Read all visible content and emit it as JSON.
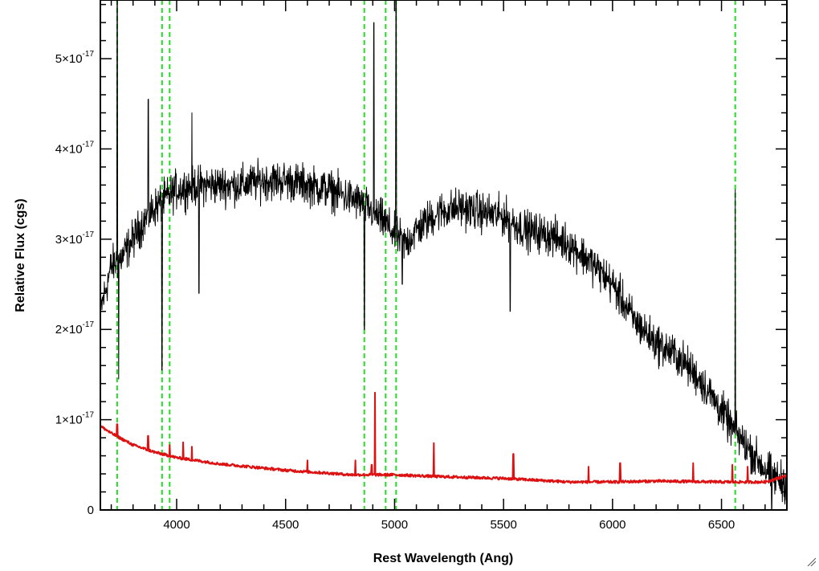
{
  "chart_data": {
    "type": "line",
    "title": "",
    "xlabel": "Rest Wavelength (Ang)",
    "ylabel": "Relative Flux (cgs)",
    "xlim": [
      3650,
      6800
    ],
    "ylim": [
      0,
      5.65e-17
    ],
    "x_ticks": [
      4000,
      4500,
      5000,
      5500,
      6000,
      6500
    ],
    "x_tick_labels": [
      "4000",
      "4500",
      "5000",
      "5500",
      "6000",
      "6500"
    ],
    "y_ticks": [
      0,
      1e-17,
      2e-17,
      3e-17,
      4e-17,
      5e-17
    ],
    "y_tick_labels": [
      {
        "mantissa": "0",
        "exponent": ""
      },
      {
        "mantissa": "1×10",
        "exponent": "-17"
      },
      {
        "mantissa": "2×10",
        "exponent": "-17"
      },
      {
        "mantissa": "3×10",
        "exponent": "-17"
      },
      {
        "mantissa": "4×10",
        "exponent": "-17"
      },
      {
        "mantissa": "5×10",
        "exponent": "-17"
      }
    ],
    "grid": false,
    "legend": "none",
    "series": [
      {
        "color": "#000000",
        "style": "noisy spectrum",
        "x": [
          3650,
          3700,
          3750,
          3800,
          3850,
          3900,
          3950,
          4000,
          4100,
          4200,
          4300,
          4400,
          4500,
          4600,
          4700,
          4800,
          4850,
          4900,
          4950,
          5000,
          5050,
          5100,
          5200,
          5300,
          5400,
          5500,
          5600,
          5700,
          5800,
          5900,
          6000,
          6100,
          6200,
          6300,
          6400,
          6500,
          6550,
          6600,
          6650,
          6700,
          6750,
          6800
        ],
        "values": [
          2.2e-17,
          2.7e-17,
          2.8e-17,
          3e-17,
          3.2e-17,
          3.35e-17,
          3.45e-17,
          3.55e-17,
          3.6e-17,
          3.6e-17,
          3.6e-17,
          3.65e-17,
          3.65e-17,
          3.6e-17,
          3.55e-17,
          3.45e-17,
          3.4e-17,
          3.3e-17,
          3.2e-17,
          3.05e-17,
          2.95e-17,
          3.1e-17,
          3.3e-17,
          3.35e-17,
          3.3e-17,
          3.25e-17,
          3.1e-17,
          3.05e-17,
          2.95e-17,
          2.75e-17,
          2.5e-17,
          2.1e-17,
          1.85e-17,
          1.7e-17,
          1.45e-17,
          1.1e-17,
          9e-18,
          7.5e-18,
          6e-18,
          4.5e-18,
          3.5e-18,
          3e-18
        ],
        "noise": 3.2e-18,
        "peaks": [
          {
            "x": 3727,
            "y": 5.65e-17
          },
          {
            "x": 3870,
            "y": 4.55e-17
          },
          {
            "x": 4070,
            "y": 4.4e-17
          },
          {
            "x": 4861,
            "y": 5.25e-17
          },
          {
            "x": 4905,
            "y": 5.4e-17
          },
          {
            "x": 5007,
            "y": 5.65e-17
          },
          {
            "x": 6563,
            "y": 3.55e-17
          }
        ],
        "dips": [
          {
            "x": 3734,
            "y": 1.45e-17
          },
          {
            "x": 3933,
            "y": 1.55e-17
          },
          {
            "x": 4102,
            "y": 2.4e-17
          },
          {
            "x": 4861,
            "y": 2e-17
          },
          {
            "x": 5035,
            "y": 2.5e-17
          },
          {
            "x": 5530,
            "y": 2.2e-17
          },
          {
            "x": 6730,
            "y": 0.0
          }
        ]
      },
      {
        "color": "#dd1111",
        "style": "error / sky spectrum",
        "x": [
          3650,
          3700,
          3800,
          3900,
          4000,
          4200,
          4500,
          4800,
          5000,
          5200,
          5500,
          5800,
          6000,
          6200,
          6500,
          6700,
          6800
        ],
        "values": [
          9.3e-18,
          8.5e-18,
          7.2e-18,
          6.4e-18,
          5.8e-18,
          5.1e-18,
          4.4e-18,
          3.9e-18,
          3.9e-18,
          3.7e-18,
          3.5e-18,
          3.1e-18,
          3.1e-18,
          3.2e-18,
          3.1e-18,
          3.1e-18,
          3.8e-18
        ],
        "spikes": [
          {
            "x": 3727,
            "y": 9.5e-18
          },
          {
            "x": 3869,
            "y": 8.2e-18
          },
          {
            "x": 3968,
            "y": 7.2e-18
          },
          {
            "x": 4030,
            "y": 7.5e-18
          },
          {
            "x": 4070,
            "y": 7e-18
          },
          {
            "x": 4600,
            "y": 5.5e-18
          },
          {
            "x": 4820,
            "y": 5.5e-18
          },
          {
            "x": 4895,
            "y": 5e-18
          },
          {
            "x": 4910,
            "y": 1.3e-17
          },
          {
            "x": 5180,
            "y": 7.4e-18
          },
          {
            "x": 5545,
            "y": 6.2e-18
          },
          {
            "x": 5890,
            "y": 4.8e-18
          },
          {
            "x": 6035,
            "y": 5.2e-18
          },
          {
            "x": 6370,
            "y": 5.2e-18
          },
          {
            "x": 6550,
            "y": 5e-18
          },
          {
            "x": 6620,
            "y": 4.8e-18
          }
        ]
      }
    ],
    "vertical_lines": {
      "color": "#22dd22",
      "style": "dashed",
      "x": [
        3727,
        3933,
        3968,
        4861,
        4959,
        5007,
        6563
      ]
    }
  }
}
